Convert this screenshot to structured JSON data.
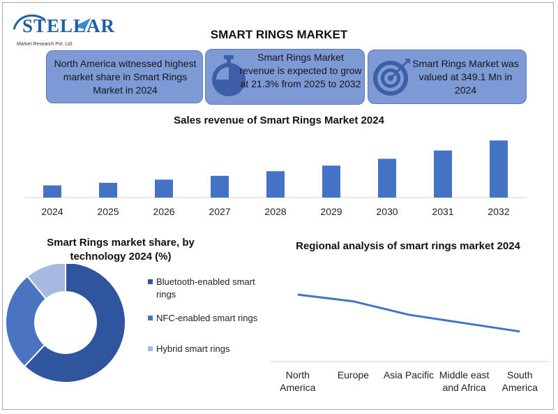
{
  "brand": {
    "name": "STELLAR",
    "tagline": "Market Research Pvt. Ltd."
  },
  "title": "SMART RINGS MARKET",
  "cards": [
    {
      "text": "North America witnessed highest market share in Smart Rings Market in 2024",
      "icon": "none"
    },
    {
      "text": "Smart Rings Market revenue is expected to grow at 21.3% from 2025 to 2032",
      "icon": "stopwatch-icon"
    },
    {
      "text": "Smart Rings Market was valued at 349.1 Mn in 2024",
      "icon": "target-icon"
    }
  ],
  "colors": {
    "bar": "#4472c4",
    "card_bg": "#7d9ad6",
    "donut": [
      "#2f559e",
      "#4a73c2",
      "#a7b9e0"
    ]
  },
  "chart_data": [
    {
      "type": "bar",
      "title": "Sales revenue of Smart Rings Market 2024",
      "categories": [
        "2024",
        "2025",
        "2026",
        "2027",
        "2028",
        "2029",
        "2030",
        "2031",
        "2032"
      ],
      "values": [
        349.1,
        423.5,
        513.6,
        623.0,
        755.7,
        916.6,
        1111.8,
        1348.6,
        1635.9
      ],
      "ylim": [
        0,
        1700
      ]
    },
    {
      "type": "pie",
      "title": "Smart Rings market share, by technology 2024 (%)",
      "labels": [
        "Bluetooth-enabled smart rings",
        "NFC-enabled smart rings",
        "Hybrid smart rings"
      ],
      "values": [
        62,
        27,
        11
      ]
    },
    {
      "type": "line",
      "title": "Regional analysis of smart rings market 2024",
      "categories": [
        "North America",
        "Europe",
        "Asia Pacific",
        "Middle east and Africa",
        "South America"
      ],
      "values": [
        40,
        36,
        28,
        23,
        18
      ],
      "ylim": [
        0,
        50
      ]
    }
  ]
}
